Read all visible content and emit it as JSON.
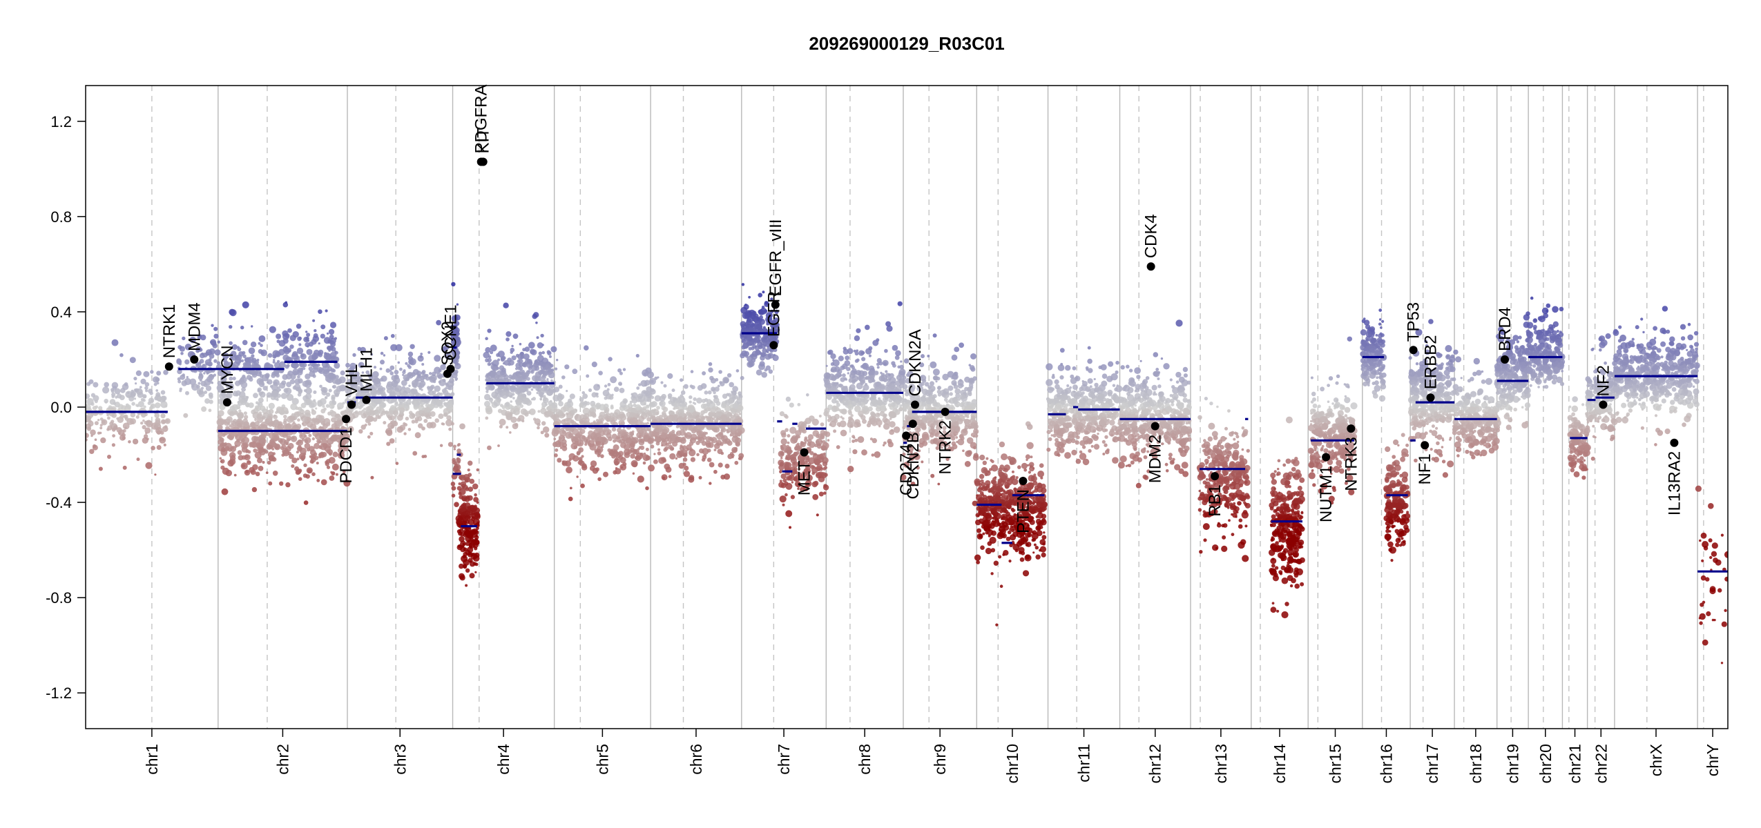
{
  "chart_data": {
    "type": "scatter",
    "title": "209269000129_R03C01",
    "xlabel": "",
    "ylabel": "",
    "ylim": [
      -1.35,
      1.35
    ],
    "y_ticks": [
      -1.2,
      -0.8,
      -0.4,
      0.0,
      0.4,
      0.8,
      1.2
    ],
    "y_tick_labels": [
      "-1.2",
      "-0.8",
      "-0.4",
      "0.0",
      "0.4",
      "0.8",
      "1.2"
    ],
    "chromosomes": [
      {
        "name": "chr1",
        "length": 249,
        "centromere": 0.5
      },
      {
        "name": "chr2",
        "length": 243,
        "centromere": 0.38
      },
      {
        "name": "chr3",
        "length": 198,
        "centromere": 0.46
      },
      {
        "name": "chr4",
        "length": 191,
        "centromere": 0.26
      },
      {
        "name": "chr5",
        "length": 181,
        "centromere": 0.27
      },
      {
        "name": "chr6",
        "length": 171,
        "centromere": 0.36
      },
      {
        "name": "chr7",
        "length": 159,
        "centromere": 0.38
      },
      {
        "name": "chr8",
        "length": 145,
        "centromere": 0.31
      },
      {
        "name": "chr9",
        "length": 138,
        "centromere": 0.35
      },
      {
        "name": "chr10",
        "length": 134,
        "centromere": 0.3
      },
      {
        "name": "chr11",
        "length": 135,
        "centromere": 0.4
      },
      {
        "name": "chr12",
        "length": 133,
        "centromere": 0.27
      },
      {
        "name": "chr13",
        "length": 114,
        "centromere": 0.16
      },
      {
        "name": "chr14",
        "length": 107,
        "centromere": 0.16
      },
      {
        "name": "chr15",
        "length": 102,
        "centromere": 0.18
      },
      {
        "name": "chr16",
        "length": 90,
        "centromere": 0.4
      },
      {
        "name": "chr17",
        "length": 83,
        "centromere": 0.29
      },
      {
        "name": "chr18",
        "length": 80,
        "centromere": 0.22
      },
      {
        "name": "chr19",
        "length": 59,
        "centromere": 0.45
      },
      {
        "name": "chr20",
        "length": 64,
        "centromere": 0.44
      },
      {
        "name": "chr21",
        "length": 47,
        "centromere": 0.26
      },
      {
        "name": "chr22",
        "length": 51,
        "centromere": 0.28
      },
      {
        "name": "chrX",
        "length": 156,
        "centromere": 0.39
      },
      {
        "name": "chrY",
        "length": 57,
        "centromere": 0.2
      }
    ],
    "segments": [
      {
        "chr": "chr1",
        "start": 0.0,
        "end": 0.62,
        "value": -0.02
      },
      {
        "chr": "chr1",
        "start": 0.7,
        "end": 1.5,
        "value": 0.16
      },
      {
        "chr": "chr1",
        "start": 1.5,
        "end": 1.9,
        "value": 0.19
      },
      {
        "chr": "chr2",
        "start": 0.0,
        "end": 1.0,
        "value": -0.1
      },
      {
        "chr": "chr3",
        "start": 0.0,
        "end": 0.08,
        "value": 0.02
      },
      {
        "chr": "chr3",
        "start": 0.08,
        "end": 1.0,
        "value": 0.04
      },
      {
        "chr": "chr3",
        "start": 1.0,
        "end": 1.08,
        "value": -0.28
      },
      {
        "chr": "chr4",
        "start": 0.0,
        "end": 0.04,
        "value": 0.25
      },
      {
        "chr": "chr4",
        "start": 0.04,
        "end": 0.08,
        "value": -0.2
      },
      {
        "chr": "chr4",
        "start": 0.08,
        "end": 0.24,
        "value": -0.5
      },
      {
        "chr": "chr4",
        "start": 0.33,
        "end": 1.0,
        "value": 0.1
      },
      {
        "chr": "chr5",
        "start": 0.0,
        "end": 1.0,
        "value": -0.08
      },
      {
        "chr": "chr6",
        "start": 0.0,
        "end": 1.0,
        "value": -0.07
      },
      {
        "chr": "chr7",
        "start": 0.0,
        "end": 0.42,
        "value": 0.31
      },
      {
        "chr": "chr7",
        "start": 0.42,
        "end": 0.48,
        "value": -0.06
      },
      {
        "chr": "chr7",
        "start": 0.48,
        "end": 0.6,
        "value": -0.27
      },
      {
        "chr": "chr7",
        "start": 0.6,
        "end": 0.66,
        "value": -0.07
      },
      {
        "chr": "chr7",
        "start": 0.76,
        "end": 1.0,
        "value": -0.09
      },
      {
        "chr": "chr8",
        "start": 0.0,
        "end": 1.0,
        "value": 0.06
      },
      {
        "chr": "chr9",
        "start": 0.0,
        "end": 0.05,
        "value": -0.15
      },
      {
        "chr": "chr9",
        "start": 0.05,
        "end": 0.12,
        "value": -0.08
      },
      {
        "chr": "chr9",
        "start": 0.12,
        "end": 1.0,
        "value": -0.02
      },
      {
        "chr": "chr10",
        "start": 0.0,
        "end": 0.35,
        "value": -0.41
      },
      {
        "chr": "chr10",
        "start": 0.35,
        "end": 0.5,
        "value": -0.57
      },
      {
        "chr": "chr10",
        "start": 0.5,
        "end": 0.95,
        "value": -0.37
      },
      {
        "chr": "chr11",
        "start": 0.0,
        "end": 0.25,
        "value": -0.03
      },
      {
        "chr": "chr11",
        "start": 0.35,
        "end": 0.42,
        "value": 0.0
      },
      {
        "chr": "chr11",
        "start": 0.42,
        "end": 1.0,
        "value": -0.01
      },
      {
        "chr": "chr12",
        "start": 0.0,
        "end": 1.0,
        "value": -0.05
      },
      {
        "chr": "chr13",
        "start": 0.15,
        "end": 0.9,
        "value": -0.26
      },
      {
        "chr": "chr13",
        "start": 0.9,
        "end": 0.95,
        "value": -0.05
      },
      {
        "chr": "chr14",
        "start": 0.35,
        "end": 0.9,
        "value": -0.48
      },
      {
        "chr": "chr15",
        "start": 0.05,
        "end": 0.85,
        "value": -0.14
      },
      {
        "chr": "chr16",
        "start": 0.0,
        "end": 0.45,
        "value": 0.21
      },
      {
        "chr": "chr16",
        "start": 0.5,
        "end": 0.95,
        "value": -0.37
      },
      {
        "chr": "chr17",
        "start": 0.0,
        "end": 0.12,
        "value": -0.14
      },
      {
        "chr": "chr17",
        "start": 0.12,
        "end": 1.0,
        "value": 0.02
      },
      {
        "chr": "chr18",
        "start": 0.0,
        "end": 1.0,
        "value": -0.05
      },
      {
        "chr": "chr19",
        "start": 0.0,
        "end": 1.0,
        "value": 0.11
      },
      {
        "chr": "chr20",
        "start": 0.0,
        "end": 1.0,
        "value": 0.21
      },
      {
        "chr": "chr21",
        "start": 0.3,
        "end": 1.0,
        "value": -0.13
      },
      {
        "chr": "chr22",
        "start": 0.0,
        "end": 0.3,
        "value": 0.03
      },
      {
        "chr": "chr22",
        "start": 0.3,
        "end": 1.0,
        "value": 0.04
      },
      {
        "chr": "chrX",
        "start": 0.0,
        "end": 1.0,
        "value": 0.13
      },
      {
        "chr": "chrY",
        "start": 0.0,
        "end": 1.0,
        "value": -0.69
      }
    ],
    "clusters": [
      {
        "chr": "chr1",
        "start": 0.0,
        "end": 0.62,
        "center": -0.02,
        "spread": 0.09,
        "count": 240
      },
      {
        "chr": "chr1",
        "start": 0.7,
        "end": 1.5,
        "center": 0.16,
        "spread": 0.08,
        "count": 280
      },
      {
        "chr": "chr1",
        "start": 1.5,
        "end": 1.9,
        "center": 0.19,
        "spread": 0.09,
        "count": 170
      },
      {
        "chr": "chr2",
        "start": 0.0,
        "end": 1.0,
        "center": -0.1,
        "spread": 0.1,
        "count": 650
      },
      {
        "chr": "chr3",
        "start": 0.0,
        "end": 1.0,
        "center": 0.04,
        "spread": 0.1,
        "count": 500
      },
      {
        "chr": "chr3",
        "start": 1.0,
        "end": 1.08,
        "center": -0.25,
        "spread": 0.08,
        "count": 25
      },
      {
        "chr": "chr4",
        "start": 0.0,
        "end": 0.05,
        "center": 0.27,
        "spread": 0.08,
        "count": 80
      },
      {
        "chr": "chr4",
        "start": 0.06,
        "end": 0.25,
        "center": -0.5,
        "spread": 0.11,
        "count": 180
      },
      {
        "chr": "chr4",
        "start": 0.33,
        "end": 1.0,
        "center": 0.1,
        "spread": 0.1,
        "count": 380
      },
      {
        "chr": "chr5",
        "start": 0.0,
        "end": 1.0,
        "center": -0.08,
        "spread": 0.1,
        "count": 520
      },
      {
        "chr": "chr6",
        "start": 0.0,
        "end": 1.0,
        "center": -0.07,
        "spread": 0.1,
        "count": 560
      },
      {
        "chr": "chr7",
        "start": 0.0,
        "end": 0.42,
        "center": 0.31,
        "spread": 0.07,
        "count": 230
      },
      {
        "chr": "chr7",
        "start": 0.46,
        "end": 1.0,
        "center": -0.22,
        "spread": 0.09,
        "count": 240
      },
      {
        "chr": "chr8",
        "start": 0.0,
        "end": 1.0,
        "center": 0.06,
        "spread": 0.1,
        "count": 430
      },
      {
        "chr": "chr9",
        "start": 0.0,
        "end": 1.0,
        "center": -0.03,
        "spread": 0.11,
        "count": 400
      },
      {
        "chr": "chr10",
        "start": 0.0,
        "end": 0.95,
        "center": -0.42,
        "spread": 0.11,
        "count": 520
      },
      {
        "chr": "chr11",
        "start": 0.0,
        "end": 1.0,
        "center": -0.02,
        "spread": 0.09,
        "count": 420
      },
      {
        "chr": "chr12",
        "start": 0.0,
        "end": 1.0,
        "center": -0.05,
        "spread": 0.1,
        "count": 430
      },
      {
        "chr": "chr13",
        "start": 0.15,
        "end": 0.95,
        "center": -0.3,
        "spread": 0.12,
        "count": 300
      },
      {
        "chr": "chr14",
        "start": 0.35,
        "end": 0.9,
        "center": -0.5,
        "spread": 0.14,
        "count": 300
      },
      {
        "chr": "chr15",
        "start": 0.05,
        "end": 0.85,
        "center": -0.12,
        "spread": 0.1,
        "count": 290
      },
      {
        "chr": "chr16",
        "start": 0.0,
        "end": 0.45,
        "center": 0.22,
        "spread": 0.08,
        "count": 160
      },
      {
        "chr": "chr16",
        "start": 0.5,
        "end": 0.95,
        "center": -0.4,
        "spread": 0.1,
        "count": 170
      },
      {
        "chr": "chr17",
        "start": 0.0,
        "end": 1.0,
        "center": 0.03,
        "spread": 0.11,
        "count": 320
      },
      {
        "chr": "chr18",
        "start": 0.0,
        "end": 1.0,
        "center": -0.05,
        "spread": 0.09,
        "count": 230
      },
      {
        "chr": "chr19",
        "start": 0.0,
        "end": 1.0,
        "center": 0.13,
        "spread": 0.09,
        "count": 220
      },
      {
        "chr": "chr20",
        "start": 0.0,
        "end": 1.0,
        "center": 0.22,
        "spread": 0.08,
        "count": 230
      },
      {
        "chr": "chr21",
        "start": 0.3,
        "end": 1.0,
        "center": -0.15,
        "spread": 0.09,
        "count": 100
      },
      {
        "chr": "chr22",
        "start": 0.0,
        "end": 1.0,
        "center": 0.04,
        "spread": 0.1,
        "count": 160
      },
      {
        "chr": "chrX",
        "start": 0.0,
        "end": 1.0,
        "center": 0.13,
        "spread": 0.09,
        "count": 480
      },
      {
        "chr": "chrY",
        "start": 0.0,
        "end": 1.0,
        "center": -0.72,
        "spread": 0.2,
        "count": 35
      }
    ],
    "genes": [
      {
        "name": "NTRK1",
        "chr": "chr1",
        "pos": 0.63,
        "value": 0.17
      },
      {
        "name": "MDM4",
        "chr": "chr1",
        "pos": 0.82,
        "value": 0.2
      },
      {
        "name": "MYCN",
        "chr": "chr2",
        "pos": 0.07,
        "value": 0.02
      },
      {
        "name": "PDCD1",
        "chr": "chr2",
        "pos": 0.99,
        "value": -0.05
      },
      {
        "name": "VHL",
        "chr": "chr3",
        "pos": 0.04,
        "value": 0.01
      },
      {
        "name": "MLH1",
        "chr": "chr3",
        "pos": 0.18,
        "value": 0.03
      },
      {
        "name": "SOX2",
        "chr": "chr3",
        "pos": 0.95,
        "value": 0.14
      },
      {
        "name": "CCNE1",
        "chr": "chr3",
        "pos": 0.98,
        "value": 0.16
      },
      {
        "name": "PDGFRA",
        "chr": "chr4",
        "pos": 0.28,
        "value": 1.03
      },
      {
        "name": "KIT",
        "chr": "chr4",
        "pos": 0.3,
        "value": 1.03
      },
      {
        "name": "EGFR",
        "chr": "chr7",
        "pos": 0.38,
        "value": 0.26
      },
      {
        "name": "EGFR_vIII",
        "chr": "chr7",
        "pos": 0.4,
        "value": 0.43
      },
      {
        "name": "MET",
        "chr": "chr7",
        "pos": 0.74,
        "value": -0.19
      },
      {
        "name": "CD274",
        "chr": "chr9",
        "pos": 0.04,
        "value": -0.12
      },
      {
        "name": "CDKN2B",
        "chr": "chr9",
        "pos": 0.13,
        "value": -0.07
      },
      {
        "name": "CDKN2A",
        "chr": "chr9",
        "pos": 0.16,
        "value": 0.01
      },
      {
        "name": "NTRK2",
        "chr": "chr9",
        "pos": 0.57,
        "value": -0.02
      },
      {
        "name": "PTEN",
        "chr": "chr10",
        "pos": 0.65,
        "value": -0.31
      },
      {
        "name": "CDK4",
        "chr": "chr12",
        "pos": 0.44,
        "value": 0.59
      },
      {
        "name": "MDM2",
        "chr": "chr12",
        "pos": 0.5,
        "value": -0.08
      },
      {
        "name": "RB1",
        "chr": "chr13",
        "pos": 0.4,
        "value": -0.29
      },
      {
        "name": "NUTM1",
        "chr": "chr15",
        "pos": 0.33,
        "value": -0.21
      },
      {
        "name": "NTRK3",
        "chr": "chr15",
        "pos": 0.79,
        "value": -0.09
      },
      {
        "name": "TP53",
        "chr": "chr17",
        "pos": 0.07,
        "value": 0.24
      },
      {
        "name": "NF1",
        "chr": "chr17",
        "pos": 0.33,
        "value": -0.16
      },
      {
        "name": "ERBB2",
        "chr": "chr17",
        "pos": 0.46,
        "value": 0.04
      },
      {
        "name": "BRD4",
        "chr": "chr19",
        "pos": 0.25,
        "value": 0.2
      },
      {
        "name": "NF2",
        "chr": "chr22",
        "pos": 0.58,
        "value": 0.01
      },
      {
        "name": "IL13RA2",
        "chr": "chrX",
        "pos": 0.72,
        "value": -0.15
      }
    ],
    "colors": {
      "gain": "#2a2aa0",
      "neutral": "#cccccc",
      "loss": "#8b0000",
      "segment": "#00008b",
      "gene_marker": "#000000"
    }
  }
}
